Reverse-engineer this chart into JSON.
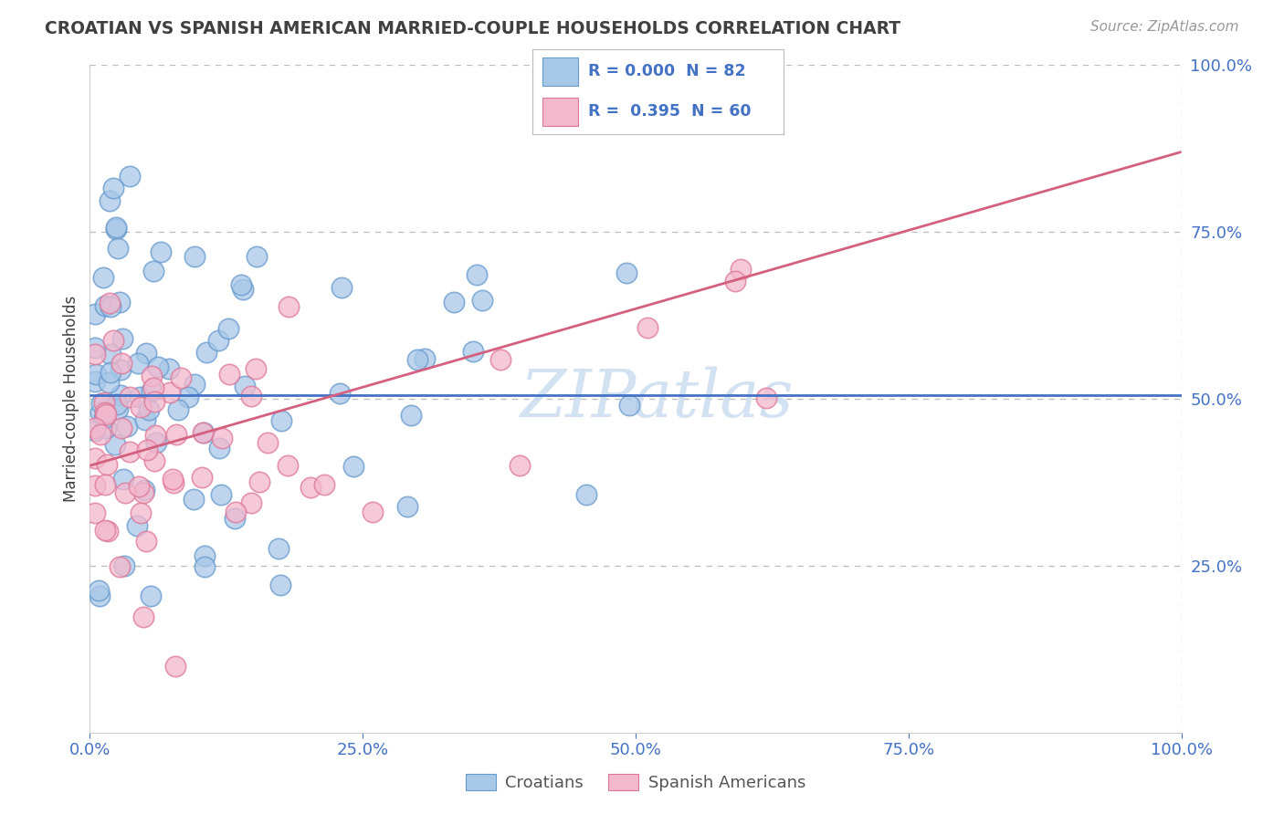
{
  "title": "CROATIAN VS SPANISH AMERICAN MARRIED-COUPLE HOUSEHOLDS CORRELATION CHART",
  "source": "Source: ZipAtlas.com",
  "ylabel": "Married-couple Households",
  "xlim": [
    0,
    1.0
  ],
  "ylim": [
    0,
    1.0
  ],
  "xticks": [
    0.0,
    0.25,
    0.5,
    0.75,
    1.0
  ],
  "xticklabels": [
    "0.0%",
    "25.0%",
    "50.0%",
    "75.0%",
    "100.0%"
  ],
  "yticks": [
    0.25,
    0.5,
    0.75,
    1.0
  ],
  "yticklabels": [
    "25.0%",
    "50.0%",
    "75.0%",
    "100.0%"
  ],
  "croatian_R": 0.0,
  "croatian_N": 82,
  "spanish_R": 0.395,
  "spanish_N": 60,
  "croatian_color": "#a8c8e8",
  "croatian_edge_color": "#6699cc",
  "croatian_line_color": "#4472c4",
  "spanish_color": "#f4b8cc",
  "spanish_edge_color": "#dd7799",
  "spanish_line_color": "#d46080",
  "background_color": "#ffffff",
  "grid_color": "#bbbbbb",
  "title_color": "#404040",
  "source_color": "#999999",
  "tick_color": "#4472c4",
  "watermark_color": "#ccddf0",
  "spanish_line_x0": 0.0,
  "spanish_line_y0": 0.4,
  "spanish_line_x1": 1.0,
  "spanish_line_y1": 0.87,
  "croatian_line_y": 0.505
}
